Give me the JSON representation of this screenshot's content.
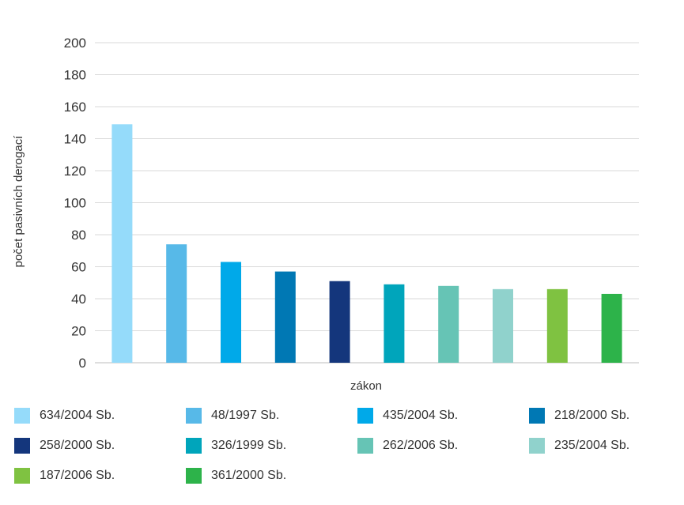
{
  "chart_data": {
    "type": "bar",
    "title": "",
    "xlabel": "zákon",
    "ylabel": "počet pasivních derogací",
    "ylim": [
      0,
      200
    ],
    "yticks": [
      0,
      20,
      40,
      60,
      80,
      100,
      120,
      140,
      160,
      180,
      200
    ],
    "grid": true,
    "legend_position": "bottom",
    "categories": [
      "634/2004 Sb.",
      "48/1997 Sb.",
      "435/2004 Sb.",
      "218/2000 Sb.",
      "258/2000 Sb.",
      "326/1999 Sb.",
      "262/2006 Sb.",
      "235/2004 Sb.",
      "187/2006 Sb.",
      "361/2000 Sb."
    ],
    "values": [
      149,
      74,
      63,
      57,
      51,
      49,
      48,
      46,
      46,
      43
    ],
    "colors": [
      "#95dbfa",
      "#57b9e8",
      "#00a9e9",
      "#0078b4",
      "#14367c",
      "#00a5bb",
      "#66c4b5",
      "#90d2cc",
      "#7fc241",
      "#2db34a"
    ]
  }
}
